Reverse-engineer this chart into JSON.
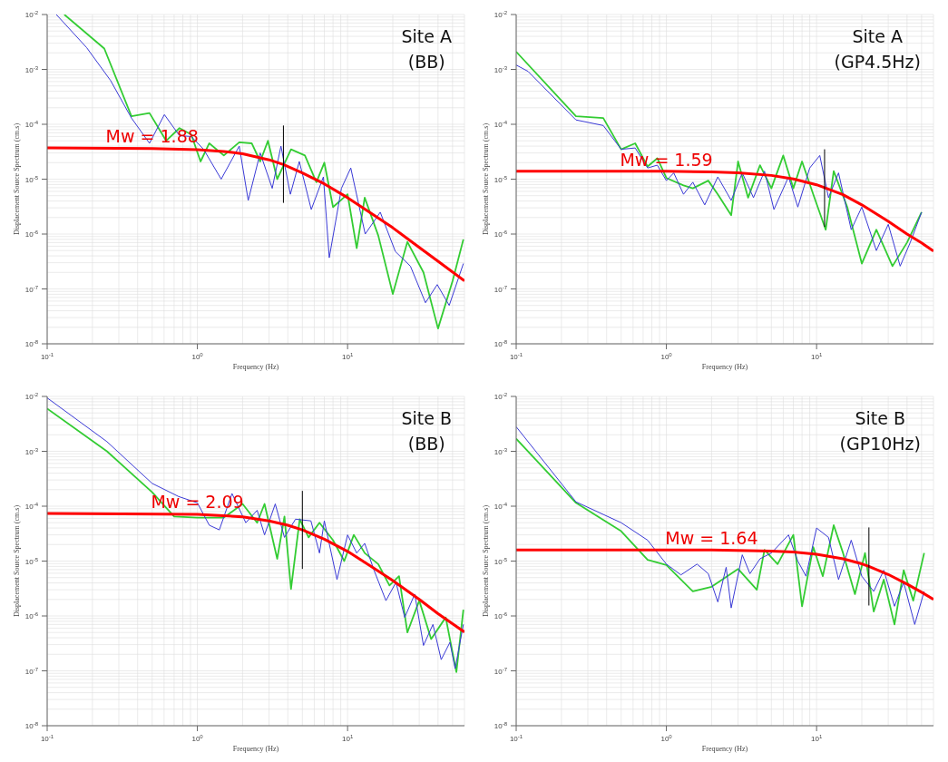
{
  "chart_data": [
    {
      "type": "line",
      "xlabel": "Frequency (Hz)",
      "ylabel": "Displacement Source Spectrum (cm.s)",
      "log": "xy",
      "grid": true,
      "line_style": "solid",
      "xlim": [
        0.1,
        60
      ],
      "xticks": [
        {
          "value": 0.1,
          "label": "10$^{-1}$"
        },
        {
          "value": 1,
          "label": "10$^{0}$"
        },
        {
          "value": 10,
          "label": "10$^{1}$"
        }
      ],
      "ylim": [
        1e-08,
        0.01
      ],
      "yticks": [
        {
          "value": 1e-08,
          "label": "10$^{-8}$"
        },
        {
          "value": 1e-07,
          "label": "10$^{-7}$"
        },
        {
          "value": 1e-06,
          "label": "10$^{-6}$"
        },
        {
          "value": 1e-05,
          "label": "10$^{-5}$"
        },
        {
          "value": 0.0001,
          "label": "10$^{-4}$"
        },
        {
          "value": 0.001,
          "label": "10$^{-3}$"
        },
        {
          "value": 0.01,
          "label": "10$^{-2}$"
        }
      ],
      "annotations": [
        "Site A",
        "(BB)",
        "Mw = 1.88"
      ],
      "series": [
        {
          "color": "#33cc33",
          "x": [
            0.13,
            0.24,
            0.364,
            0.48,
            0.62,
            0.76,
            0.91,
            1.05,
            1.2,
            1.5,
            1.9,
            2.3,
            2.62,
            2.95,
            3.4,
            4.2,
            5.2,
            6.2,
            7,
            8,
            10,
            11.5,
            13,
            16,
            20,
            25,
            32,
            40,
            50,
            59
          ],
          "values": [
            0.01,
            0.0024,
            0.00014,
            0.00016,
            5e-05,
            8.5e-05,
            6.5e-05,
            2.1e-05,
            4.5e-05,
            2.7e-05,
            4.7e-05,
            4.5e-05,
            2.1e-05,
            5e-05,
            1e-05,
            3.5e-05,
            2.7e-05,
            8.8e-06,
            2e-05,
            3.1e-06,
            5.3e-06,
            5.5e-07,
            4.6e-06,
            9.4e-07,
            8.1e-08,
            7.2e-07,
            2e-07,
            1.9e-08,
            1.4e-07,
            8e-07
          ]
        },
        {
          "color": "#3a3ad6",
          "x": [
            0.115,
            0.183,
            0.264,
            0.364,
            0.48,
            0.603,
            0.76,
            0.91,
            1.1,
            1.44,
            1.9,
            2.18,
            2.62,
            3.15,
            3.6,
            4.16,
            4.77,
            5.73,
            6.9,
            7.55,
            9.1,
            10.5,
            13.1,
            16.5,
            20.8,
            26.2,
            33,
            39.5,
            47.5,
            59
          ],
          "values": [
            0.01,
            0.0025,
            0.00063,
            0.00013,
            4.5e-05,
            0.00015,
            6.2e-05,
            6e-05,
            3.5e-05,
            1e-05,
            4e-05,
            4.1e-06,
            3e-05,
            6.8e-06,
            4e-05,
            5.3e-06,
            2.1e-05,
            2.8e-06,
            1.1e-05,
            3.7e-07,
            6.8e-06,
            1.6e-05,
            1e-06,
            2.5e-06,
            4.8e-07,
            2.6e-07,
            5.6e-08,
            1.2e-07,
            5e-08,
            2.9e-07
          ]
        },
        {
          "color": "#ff0000",
          "x": [
            0.1,
            0.5,
            1,
            1.5,
            2,
            3,
            3.74,
            5,
            7,
            10,
            15,
            20,
            30,
            40,
            60
          ],
          "values": [
            3.7e-05,
            3.6e-05,
            3.45e-05,
            3.2e-05,
            2.9e-05,
            2.25e-05,
            1.85e-05,
            1.3e-05,
            8.2e-06,
            4.6e-06,
            2.2e-06,
            1.3e-06,
            5.7e-07,
            3.2e-07,
            1.4e-07
          ]
        },
        {
          "color": "#000000",
          "x": [
            3.74,
            3.74
          ],
          "values": [
            9.5e-05,
            3.7e-06
          ]
        }
      ]
    },
    {
      "type": "line",
      "xlabel": "Frequency (Hz)",
      "ylabel": "Displacement Source Spectrum (cm.s)",
      "log": "xy",
      "grid": true,
      "line_style": "solid",
      "xlim": [
        0.1,
        60
      ],
      "xticks": [
        {
          "value": 0.1,
          "label": "10$^{-1}$"
        },
        {
          "value": 1,
          "label": "10$^{0}$"
        },
        {
          "value": 10,
          "label": "10$^{1}$"
        }
      ],
      "ylim": [
        1e-08,
        0.01
      ],
      "yticks": [
        {
          "value": 1e-08,
          "label": "10$^{-8}$"
        },
        {
          "value": 1e-07,
          "label": "10$^{-7}$"
        },
        {
          "value": 1e-06,
          "label": "10$^{-6}$"
        },
        {
          "value": 1e-05,
          "label": "10$^{-5}$"
        },
        {
          "value": 0.0001,
          "label": "10$^{-4}$"
        },
        {
          "value": 0.001,
          "label": "10$^{-3}$"
        },
        {
          "value": 0.01,
          "label": "10$^{-2}$"
        }
      ],
      "annotations": [
        "Site A",
        "(GP4.5Hz)",
        "Mw = 1.59"
      ],
      "series": [
        {
          "color": "#33cc33",
          "x": [
            0.1,
            0.25,
            0.38,
            0.5,
            0.62,
            0.75,
            0.87,
            1.0,
            1.3,
            1.5,
            1.9,
            2.2,
            2.7,
            3.0,
            3.5,
            4.2,
            5,
            6,
            7,
            8,
            9.5,
            11.5,
            13,
            16,
            20,
            25,
            32,
            40,
            50
          ],
          "values": [
            0.0021,
            0.00014,
            0.00013,
            3.5e-05,
            4.5e-05,
            1.7e-05,
            2.4e-05,
            1.05e-05,
            7.7e-06,
            6.8e-06,
            9.4e-06,
            5.3e-06,
            2.2e-06,
            2.1e-05,
            4.6e-06,
            1.8e-05,
            6.8e-06,
            2.7e-05,
            6.8e-06,
            2.1e-05,
            5.3e-06,
            1.2e-06,
            1.4e-05,
            3.1e-06,
            2.9e-07,
            1.2e-06,
            2.6e-07,
            7e-07,
            2.5e-06
          ]
        },
        {
          "color": "#3a3ad6",
          "x": [
            0.1,
            0.12,
            0.25,
            0.38,
            0.5,
            0.62,
            0.75,
            0.87,
            1.0,
            1.12,
            1.3,
            1.5,
            1.8,
            2.2,
            2.7,
            3.2,
            3.8,
            4.5,
            5.2,
            6.5,
            7.5,
            9,
            10.5,
            12,
            14,
            17,
            20,
            25,
            30,
            36,
            42,
            50
          ],
          "values": [
            0.0012,
            0.00092,
            0.00012,
            9.5e-05,
            3.5e-05,
            3.7e-05,
            1.6e-05,
            1.8e-05,
            9.4e-06,
            1.3e-05,
            5.3e-06,
            8.8e-06,
            3.4e-06,
            1.1e-05,
            4.1e-06,
            1.3e-05,
            4.6e-06,
            1.4e-05,
            2.8e-06,
            1.1e-05,
            3.1e-06,
            1.6e-05,
            2.7e-05,
            4.6e-06,
            1.3e-05,
            1.2e-06,
            3.1e-06,
            5e-07,
            1.5e-06,
            2.6e-07,
            7e-07,
            2.5e-06
          ]
        },
        {
          "color": "#ff0000",
          "x": [
            0.1,
            1,
            2,
            3,
            5,
            7,
            10,
            11.3,
            15,
            20,
            30,
            40,
            50,
            60
          ],
          "values": [
            1.4e-05,
            1.39e-05,
            1.36e-05,
            1.31e-05,
            1.17e-05,
            1.01e-05,
            7.9e-06,
            7e-06,
            5.2e-06,
            3.4e-06,
            1.7e-06,
            1e-06,
            6.9e-07,
            4.9e-07
          ]
        },
        {
          "color": "#000000",
          "x": [
            11.3,
            11.3
          ],
          "values": [
            3.5e-05,
            1.35e-06
          ]
        }
      ]
    },
    {
      "type": "line",
      "xlabel": "Frequency (Hz)",
      "ylabel": "Displacement Source Spectrum (cm.s)",
      "log": "xy",
      "grid": true,
      "line_style": "solid",
      "xlim": [
        0.1,
        60
      ],
      "xticks": [
        {
          "value": 0.1,
          "label": "10$^{-1}$"
        },
        {
          "value": 1,
          "label": "10$^{0}$"
        },
        {
          "value": 10,
          "label": "10$^{1}$"
        }
      ],
      "ylim": [
        1e-08,
        0.01
      ],
      "yticks": [
        {
          "value": 1e-08,
          "label": "10$^{-8}$"
        },
        {
          "value": 1e-07,
          "label": "10$^{-7}$"
        },
        {
          "value": 1e-06,
          "label": "10$^{-6}$"
        },
        {
          "value": 1e-05,
          "label": "10$^{-5}$"
        },
        {
          "value": 0.0001,
          "label": "10$^{-4}$"
        },
        {
          "value": 0.001,
          "label": "10$^{-3}$"
        },
        {
          "value": 0.01,
          "label": "10$^{-2}$"
        }
      ],
      "annotations": [
        "Site B",
        "(BB)",
        "Mw = 2.09"
      ],
      "series": [
        {
          "color": "#33cc33",
          "x": [
            0.1,
            0.25,
            0.5,
            0.7,
            1.0,
            1.5,
            2.0,
            2.5,
            2.8,
            3.4,
            3.8,
            4.2,
            4.8,
            5.5,
            6.5,
            8,
            9.5,
            11,
            13,
            16,
            19,
            22,
            25,
            30,
            36,
            45,
            53,
            59
          ],
          "values": [
            0.006,
            0.001,
            0.00018,
            6.5e-05,
            6.2e-05,
            6.2e-05,
            0.00011,
            5e-05,
            0.00011,
            1.1e-05,
            6.5e-05,
            3.1e-06,
            5.8e-05,
            2.7e-05,
            5e-05,
            2.4e-05,
            1e-05,
            3e-05,
            1.4e-05,
            8.8e-06,
            3.6e-06,
            5.3e-06,
            5e-07,
            1.9e-06,
            3.8e-07,
            9.4e-07,
            9.5e-08,
            1.3e-06
          ]
        },
        {
          "color": "#3a3ad6",
          "x": [
            0.1,
            0.25,
            0.5,
            0.75,
            1.0,
            1.2,
            1.4,
            1.7,
            2.1,
            2.5,
            2.8,
            3.3,
            3.8,
            4.5,
            5.7,
            6.5,
            7,
            8.5,
            10,
            11.5,
            13,
            15,
            18,
            21,
            24,
            28,
            32,
            37,
            42,
            48,
            52,
            59
          ],
          "values": [
            0.0094,
            0.0015,
            0.00026,
            0.00015,
            0.000115,
            4.5e-05,
            3.7e-05,
            0.00017,
            5e-05,
            8.4e-05,
            3e-05,
            0.00011,
            2.7e-05,
            5.8e-05,
            5.4e-05,
            1.4e-05,
            5.4e-05,
            4.6e-06,
            3e-05,
            1.4e-05,
            2.1e-05,
            6.8e-06,
            1.9e-06,
            4.1e-06,
            9.4e-07,
            2.5e-06,
            2.9e-07,
            7e-07,
            1.6e-07,
            3.3e-07,
            1.1e-07,
            7e-07
          ]
        },
        {
          "color": "#ff0000",
          "x": [
            0.1,
            1,
            2,
            3,
            4,
            5,
            7,
            10,
            15,
            20,
            30,
            40,
            60
          ],
          "values": [
            7.4e-05,
            7.1e-05,
            6.4e-05,
            5.4e-05,
            4.5e-05,
            3.7e-05,
            2.5e-05,
            1.5e-05,
            7.4e-06,
            4.4e-06,
            2e-06,
            1.1e-06,
            5.1e-07
          ]
        },
        {
          "color": "#000000",
          "x": [
            5,
            5
          ],
          "values": [
            0.00019,
            7.2e-06
          ]
        }
      ]
    },
    {
      "type": "line",
      "xlabel": "Frequency (Hz)",
      "ylabel": "Displacement Source Spectrum (cm.s)",
      "log": "xy",
      "grid": true,
      "line_style": "solid",
      "xlim": [
        0.1,
        60
      ],
      "xticks": [
        {
          "value": 0.1,
          "label": "10$^{-1}$"
        },
        {
          "value": 1,
          "label": "10$^{0}$"
        },
        {
          "value": 10,
          "label": "10$^{1}$"
        }
      ],
      "ylim": [
        1e-08,
        0.01
      ],
      "yticks": [
        {
          "value": 1e-08,
          "label": "10$^{-8}$"
        },
        {
          "value": 1e-07,
          "label": "10$^{-7}$"
        },
        {
          "value": 1e-06,
          "label": "10$^{-6}$"
        },
        {
          "value": 1e-05,
          "label": "10$^{-5}$"
        },
        {
          "value": 0.0001,
          "label": "10$^{-4}$"
        },
        {
          "value": 0.001,
          "label": "10$^{-3}$"
        },
        {
          "value": 0.01,
          "label": "10$^{-2}$"
        }
      ],
      "annotations": [
        "Site B",
        "(GP10Hz)",
        "Mw = 1.64"
      ],
      "series": [
        {
          "color": "#33cc33",
          "x": [
            0.1,
            0.25,
            0.5,
            0.75,
            1.0,
            1.5,
            2.0,
            3.0,
            4,
            4.5,
            5.5,
            7,
            8,
            9.5,
            11,
            13,
            15,
            18,
            21,
            24,
            28,
            33,
            38,
            44,
            52
          ],
          "values": [
            0.0017,
            0.000115,
            3.5e-05,
            1.05e-05,
            8.5e-06,
            2.8e-06,
            3.4e-06,
            7.2e-06,
            3e-06,
            1.6e-05,
            8.8e-06,
            3e-05,
            1.5e-06,
            1.8e-05,
            5.3e-06,
            4.5e-05,
            1.4e-05,
            2.5e-06,
            1.4e-05,
            1.2e-06,
            4.6e-06,
            7e-07,
            6.8e-06,
            1.9e-06,
            1.4e-05
          ]
        },
        {
          "color": "#3a3ad6",
          "x": [
            0.1,
            0.25,
            0.5,
            0.75,
            1.0,
            1.25,
            1.6,
            1.9,
            2.2,
            2.5,
            2.7,
            3.2,
            3.6,
            4.2,
            5,
            6.5,
            7.5,
            8.5,
            10,
            12,
            14,
            17,
            20,
            24,
            28,
            33,
            38,
            45,
            52
          ],
          "values": [
            0.0028,
            0.00012,
            5e-05,
            2.4e-05,
            8.8e-06,
            5.6e-06,
            8.8e-06,
            5.9e-06,
            1.8e-06,
            7.7e-06,
            1.4e-06,
            1.3e-05,
            5.9e-06,
            1.1e-05,
            1.4e-05,
            3e-05,
            1e-05,
            5.3e-06,
            4e-05,
            2.7e-05,
            4.6e-06,
            2.4e-05,
            5.3e-06,
            2.8e-06,
            6.8e-06,
            1.5e-06,
            4.1e-06,
            7e-07,
            2.8e-06
          ]
        },
        {
          "color": "#ff0000",
          "x": [
            0.1,
            2,
            5,
            7,
            10,
            15,
            20,
            22.3,
            30,
            40,
            50,
            60
          ],
          "values": [
            1.6e-05,
            1.59e-05,
            1.52e-05,
            1.46e-05,
            1.33e-05,
            1.1e-05,
            8.9e-06,
            8e-06,
            5.7e-06,
            3.8e-06,
            2.7e-06,
            2e-06
          ]
        },
        {
          "color": "#000000",
          "x": [
            22.3,
            22.3
          ],
          "values": [
            4.1e-05,
            1.55e-06
          ]
        }
      ]
    }
  ]
}
